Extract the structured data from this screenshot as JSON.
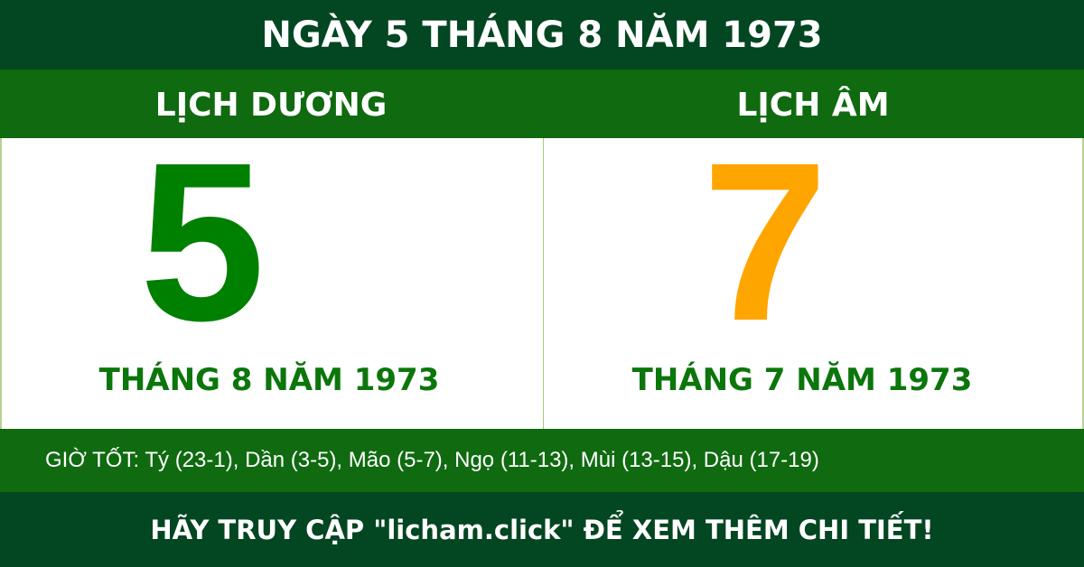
{
  "title": "NGÀY 5 THÁNG 8 NĂM 1973",
  "solar": {
    "label": "LỊCH DƯƠNG",
    "day": "5",
    "month_year": "THÁNG 8 NĂM 1973"
  },
  "lunar": {
    "label": "LỊCH ÂM",
    "day": "7",
    "month_year": "THÁNG 7 NĂM 1973"
  },
  "good_hours": "GIỜ TỐT: Tý (23-1), Dần (3-5), Mão (5-7), Ngọ (11-13), Mùi (13-15), Dậu (17-19)",
  "footer": "HÃY TRUY CẬP \"licham.click\" ĐỂ XEM THÊM CHI TIẾT!",
  "colors": {
    "dark_green": "#034622",
    "band_green": "#0f6a10",
    "solar_day": "#008000",
    "lunar_day": "#ffa500"
  }
}
